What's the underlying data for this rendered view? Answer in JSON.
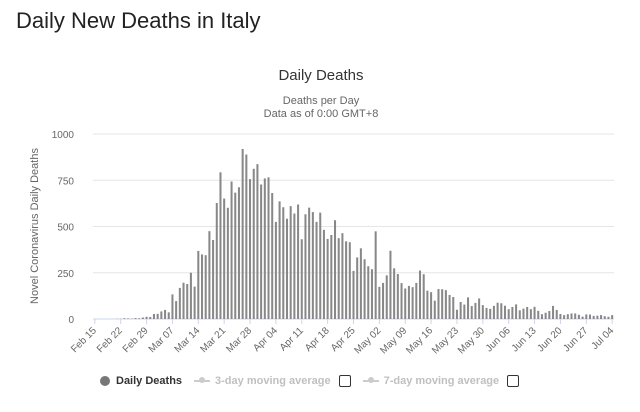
{
  "page": {
    "heading": "Daily New Deaths in Italy"
  },
  "chart_data": {
    "type": "bar",
    "title": "Daily Deaths",
    "subtitle_line1": "Deaths per Day",
    "subtitle_line2": "Data as of 0:00 GMT+8",
    "ylabel": "Novel Coronavirus Daily Deaths",
    "ylim": [
      0,
      1000
    ],
    "yticks": [
      0,
      250,
      500,
      750,
      1000
    ],
    "grid": true,
    "start_date": "2020-02-15",
    "xtick_labels": [
      "Feb 15",
      "Feb 22",
      "Feb 29",
      "Mar 07",
      "Mar 14",
      "Mar 21",
      "Mar 28",
      "Apr 04",
      "Apr 11",
      "Apr 18",
      "Apr 25",
      "May 02",
      "May 09",
      "May 16",
      "May 23",
      "May 30",
      "Jun 06",
      "Jun 13",
      "Jun 20",
      "Jun 27",
      "Jul 04"
    ],
    "bar_color": "#888888",
    "series": [
      {
        "name": "Daily Deaths",
        "values": [
          0,
          0,
          0,
          0,
          0,
          0,
          1,
          1,
          4,
          3,
          2,
          5,
          4,
          8,
          12,
          11,
          27,
          28,
          41,
          49,
          36,
          133,
          97,
          168,
          196,
          189,
          250,
          175,
          368,
          349,
          345,
          475,
          427,
          627,
          793,
          651,
          601,
          743,
          683,
          712,
          919,
          889,
          756,
          812,
          837,
          727,
          760,
          766,
          681,
          525,
          636,
          604,
          542,
          610,
          570,
          619,
          431,
          566,
          602,
          578,
          525,
          575,
          482,
          433,
          454,
          534,
          437,
          464,
          420,
          415,
          260,
          333,
          382,
          323,
          285,
          269,
          474,
          174,
          195,
          236,
          369,
          274,
          243,
          194,
          165,
          179,
          172,
          195,
          262,
          242,
          153,
          145,
          99,
          162,
          161,
          156,
          130,
          119,
          50,
          92,
          78,
          117,
          70,
          87,
          111,
          75,
          60,
          55,
          71,
          88,
          85,
          72,
          53,
          65,
          79,
          47,
          56,
          65,
          53,
          66,
          44,
          26,
          34,
          43,
          71,
          49,
          27,
          21,
          26,
          30,
          30,
          23,
          13,
          25,
          24,
          17,
          18,
          21,
          15,
          12,
          21
        ]
      }
    ]
  },
  "legend": {
    "daily_deaths": "Daily Deaths",
    "avg3": "3-day moving average",
    "avg7": "7-day moving average"
  }
}
